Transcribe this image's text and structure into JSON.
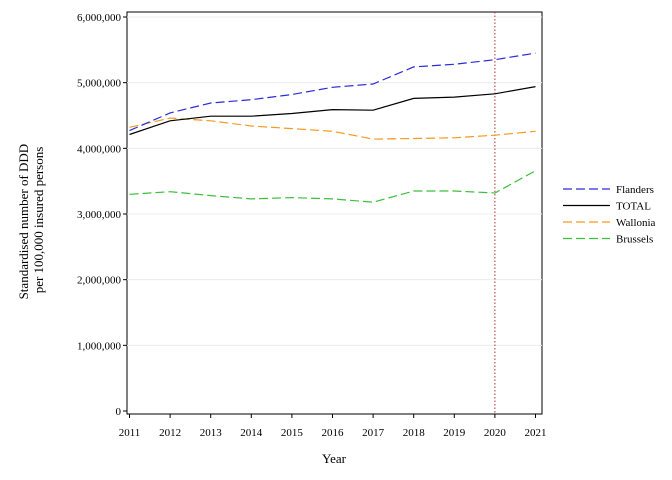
{
  "chart_data": {
    "type": "line",
    "title": "",
    "xlabel": "Year",
    "ylabel_lines": [
      "Standardised number of DDD",
      "per 100,000 insured persons"
    ],
    "x": [
      2011,
      2012,
      2013,
      2014,
      2015,
      2016,
      2017,
      2018,
      2019,
      2020,
      2021
    ],
    "x_tick_labels": [
      "2011",
      "2012",
      "2013",
      "2014",
      "2015",
      "2016",
      "2017",
      "2018",
      "2019",
      "2020",
      "2021"
    ],
    "ylim": [
      0,
      6000000
    ],
    "y_ticks": [
      0,
      1000000,
      2000000,
      3000000,
      4000000,
      5000000,
      6000000
    ],
    "y_tick_labels": [
      "0",
      "1,000,000",
      "2,000,000",
      "3,000,000",
      "4,000,000",
      "5,000,000",
      "6,000,000"
    ],
    "grid": true,
    "legend_position": "right",
    "vertical_marker": {
      "x": 2020,
      "color": "#b03030",
      "style": "dotted"
    },
    "series": [
      {
        "name": "Flanders",
        "color": "#2b2bd9",
        "dash": "dashed",
        "values": [
          4270000,
          4540000,
          4690000,
          4740000,
          4820000,
          4930000,
          4980000,
          5240000,
          5280000,
          5350000,
          5450000
        ]
      },
      {
        "name": "TOTAL",
        "color": "#000000",
        "dash": "solid",
        "values": [
          4210000,
          4420000,
          4490000,
          4490000,
          4530000,
          4590000,
          4580000,
          4760000,
          4780000,
          4830000,
          4940000
        ]
      },
      {
        "name": "Wallonia",
        "color": "#f59a1f",
        "dash": "dashed",
        "values": [
          4320000,
          4460000,
          4420000,
          4340000,
          4300000,
          4260000,
          4140000,
          4150000,
          4160000,
          4200000,
          4260000
        ]
      },
      {
        "name": "Brussels",
        "color": "#3cbf3c",
        "dash": "dashed",
        "values": [
          3300000,
          3340000,
          3280000,
          3230000,
          3250000,
          3230000,
          3180000,
          3350000,
          3350000,
          3320000,
          3660000
        ]
      }
    ]
  }
}
